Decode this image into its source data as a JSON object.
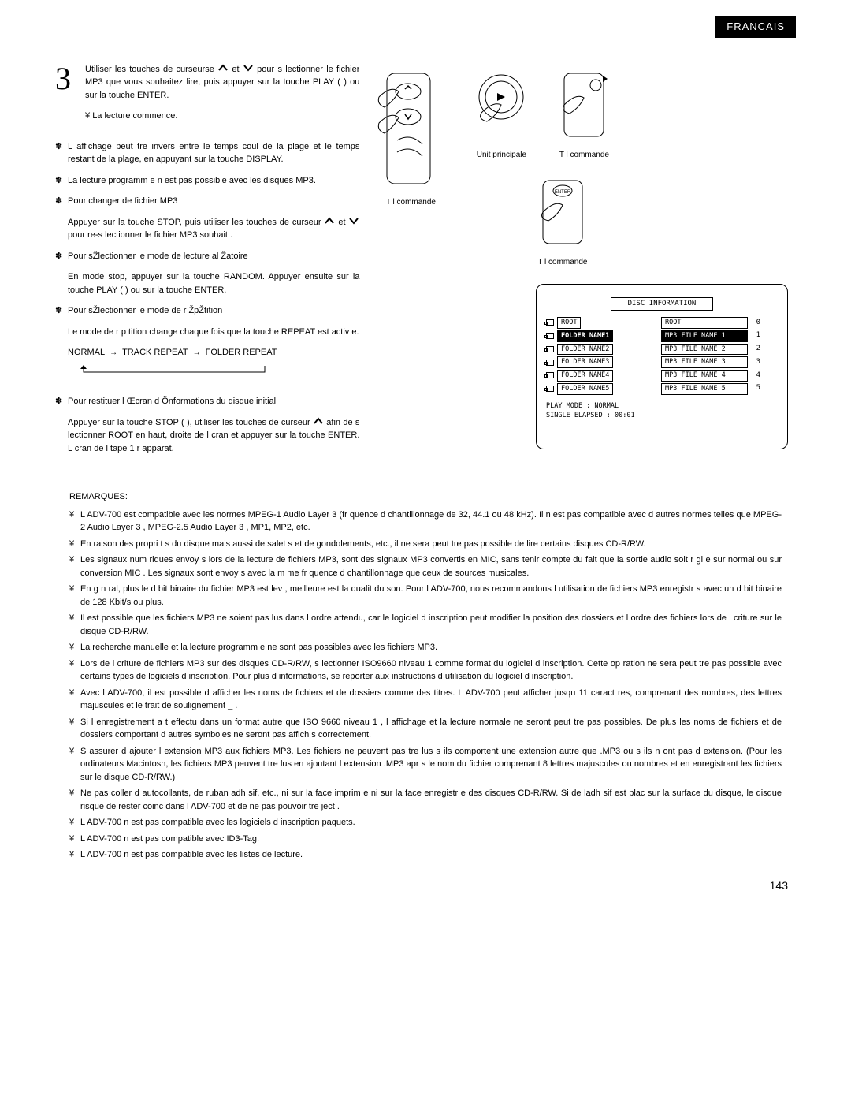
{
  "lang_tag": "FRANCAIS",
  "step": {
    "num": "3",
    "p1": "Utiliser les touches de curseurse",
    "p1b": "et",
    "p1c": "pour s lectionner le fichier MP3 que vous souhaitez lire, puis appuyer sur la touche PLAY ( ) ou sur la touche ENTER.",
    "p2_mark": "¥",
    "p2": "La lecture commence."
  },
  "bullets": [
    {
      "mark": "✽",
      "text": "L affichage peut  tre invers  entre le temps  coul  de la plage et le temps restant de la plage, en appuyant sur la touche DISPLAY."
    },
    {
      "mark": "✽",
      "text": "La lecture programm  e n est pas possible avec les disques MP3."
    },
    {
      "mark": "✽",
      "text": "Pour changer de fichier MP3",
      "sub": "Appuyer sur la touche STOP, puis utiliser les touches de curseur",
      "sub_mid": "et",
      "sub_end": "pour re-s lectionner le fichier MP3 souhait ."
    },
    {
      "mark": "✽",
      "text": "Pour sŽlectionner le mode de lecture al    Žatoire",
      "sub_plain": "En mode stop, appuyer sur la touche RANDOM. Appuyer ensuite sur la touche PLAY ( ) ou sur la touche ENTER."
    },
    {
      "mark": "✽",
      "text": "Pour sŽlectionner le mode de r  ŽpŽtition",
      "sub_plain": "Le mode de r p tition change   chaque fois que la touche REPEAT est activ e.",
      "seq": [
        "NORMAL",
        "TRACK REPEAT",
        "FOLDER REPEAT"
      ]
    },
    {
      "mark": "✽",
      "text": "Pour restituer l Œcran d Õnformations du disque initial",
      "sub_plain": "Appuyer sur la touche STOP ( ), utiliser les touches de curseur      afin de s lectionner   ROOT   en haut,   droite de l cran et appuyer sur la touche ENTER. L cran de l tape 1 r apparat."
    }
  ],
  "captions": {
    "remote1": "T l commande",
    "unit": "Unit  principale",
    "remote2": "T l commande",
    "remote3": "T l commande"
  },
  "screen": {
    "title": "DISC INFORMATION",
    "rows": [
      {
        "left": "ROOT",
        "right": "ROOT",
        "num": "0",
        "sel_left": false,
        "sel_right": false
      },
      {
        "left": "FOLDER NAME1",
        "right": "MP3 FILE NAME 1",
        "num": "1",
        "sel_left": true,
        "sel_right": true
      },
      {
        "left": "FOLDER NAME2",
        "right": "MP3 FILE NAME 2",
        "num": "2",
        "sel_left": false,
        "sel_right": false
      },
      {
        "left": "FOLDER NAME3",
        "right": "MP3 FILE NAME 3",
        "num": "3",
        "sel_left": false,
        "sel_right": false
      },
      {
        "left": "FOLDER NAME4",
        "right": "MP3 FILE NAME 4",
        "num": "4",
        "sel_left": false,
        "sel_right": false
      },
      {
        "left": "FOLDER NAME5",
        "right": "MP3 FILE NAME 5",
        "num": "5",
        "sel_left": false,
        "sel_right": false
      }
    ],
    "status1": "PLAY MODE     : NORMAL",
    "status2": "SINGLE ELAPSED  : 00:01"
  },
  "remarks_title": "REMARQUES:",
  "remarks": [
    "L ADV-700 est compatible avec les normes  MPEG-1 Audio Layer 3  (fr quence d chantillonnage de 32, 44.1 ou 48 kHz). Il n est pas compatible avec d autres normes telles que  MPEG-2 Audio Layer 3 ,  MPEG-2.5 Audio Layer 3 , MP1, MP2, etc.",
    "En raison des propri t s du disque mais aussi de salet s et de gondolements, etc., il ne sera peut   tre pas possible de lire certains disques CD-R/RW.",
    "Les signaux num riques envoy s lors de la lecture de fichiers MP3, sont des signaux MP3 convertis en MIC, sans tenir compte du fait que la sortie audio soit r gl e sur  normal  ou sur  conversion MIC .  Les signaux sont envoy s avec la m me fr quence d chantillonnage que ceux de sources musicales.",
    "En g n ral, plus le d bit binaire du fichier MP3 est  lev , meilleure est la qualit  du son. Pour l ADV-700, nous recommandons l utilisation de fichiers MP3 enregistr s avec un d bit binaire de 128 Kbit/s ou plus.",
    "Il est possible que les fichiers MP3 ne soient pas lus dans l ordre attendu, car le logiciel d inscription peut modifier la position des dossiers et l ordre des fichiers lors de l criture sur le disque CD-R/RW.",
    "La recherche manuelle et la lecture programm e ne sont pas possibles avec les fichiers MP3.",
    "Lors de l criture de fichiers MP3 sur des disques CD-R/RW, s lectionner  ISO9660 niveau 1  comme format du logiciel d inscription. Cette op ration ne sera peut   tre pas possible avec certains types de logiciels d inscription. Pour plus d informations, se reporter aux instructions d utilisation du logiciel d inscription.",
    "Avec l ADV-700, il est possible d afficher les noms de fichiers et de dossiers comme des titres. L ADV-700 peut afficher jusqu  11 caract res, comprenant des nombres, des lettres majuscules et le trait de soulignement    _  .",
    "Si l enregistrement a t  effectu  dans un format autre que  ISO 9660 niveau 1 , l affichage et la lecture normale ne seront peut   tre pas possibles. De plus les noms de fichiers et de dossiers comportant d autres symboles ne seront pas affich s correctement.",
    "S assurer d ajouter l extension  MP3  aux fichiers MP3. Les fichiers ne peuvent pas   tre lus s ils comportent une extension autre que .MP3  ou s ils n ont pas d extension. (Pour les ordinateurs Macintosh, les fichiers MP3 peuvent  tre lus en ajoutant l extension  .MP3 apr s le nom du fichier comprenant 8 lettres majuscules ou nombres et en enregistrant les fichiers sur le disque CD-R/RW.)",
    "Ne pas coller d autocollants, de ruban adh sif, etc., ni sur la face imprim e ni sur la face enregistr e des disques CD-R/RW. Si de ladh sif est plac  sur la surface du disque, le disque risque de rester coinc  dans l ADV-700 et de ne pas pouvoir tre ject .",
    "L ADV-700 n est pas compatible avec les logiciels d inscription paquets.",
    "L ADV-700 n est pas compatible avec ID3-Tag.",
    "L ADV-700 n est pas compatible avec les listes de lecture."
  ],
  "remark_mark": "¥",
  "page_num": "143"
}
